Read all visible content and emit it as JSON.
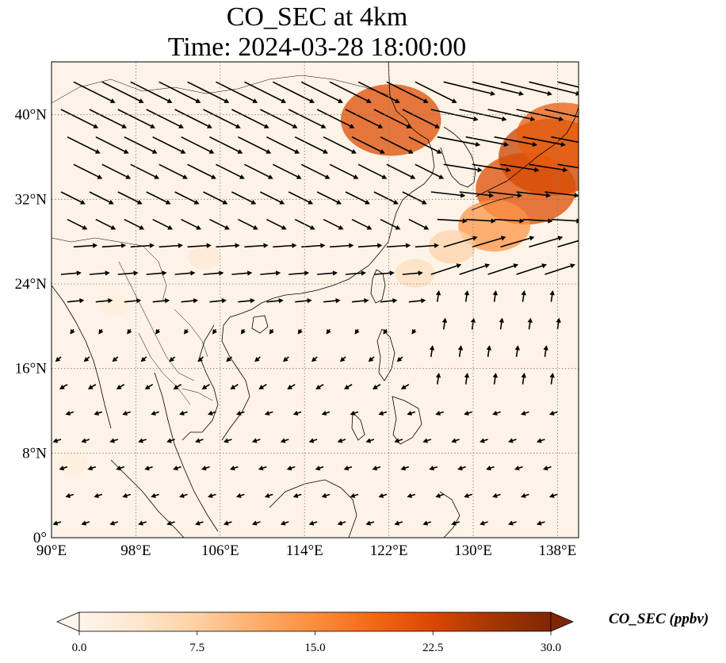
{
  "title": {
    "line1": "CO_SEC at 4km",
    "line2": "Time: 2024-03-28 18:00:00"
  },
  "map": {
    "extent": {
      "lon": [
        90,
        140
      ],
      "lat": [
        0,
        45
      ]
    },
    "gridlines": "dotted",
    "lon_ticks": [
      {
        "value": 90,
        "label": "90°E"
      },
      {
        "value": 98,
        "label": "98°E"
      },
      {
        "value": 106,
        "label": "106°E"
      },
      {
        "value": 114,
        "label": "114°E"
      },
      {
        "value": 122,
        "label": "122°E"
      },
      {
        "value": 130,
        "label": "130°E"
      },
      {
        "value": 138,
        "label": "138°E"
      }
    ],
    "lat_ticks": [
      {
        "value": 0,
        "label": "0°"
      },
      {
        "value": 8,
        "label": "8°N"
      },
      {
        "value": 16,
        "label": "16°N"
      },
      {
        "value": 24,
        "label": "24°N"
      },
      {
        "value": 32,
        "label": "32°N"
      },
      {
        "value": 40,
        "label": "40°N"
      }
    ],
    "plumes": [
      {
        "lon": 137.5,
        "lat": 36.0,
        "value": 24
      },
      {
        "lon": 135.0,
        "lat": 33.0,
        "value": 22
      },
      {
        "lon": 138.5,
        "lat": 38.0,
        "value": 20
      },
      {
        "lon": 132.0,
        "lat": 29.5,
        "value": 14
      },
      {
        "lon": 128.0,
        "lat": 27.5,
        "value": 7
      },
      {
        "lon": 122.2,
        "lat": 39.5,
        "value": 22
      },
      {
        "lon": 124.5,
        "lat": 25.0,
        "value": 5
      },
      {
        "lon": 104.5,
        "lat": 26.5,
        "value": 3
      },
      {
        "lon": 96.0,
        "lat": 22.0,
        "value": 2
      },
      {
        "lon": 92.0,
        "lat": 7.0,
        "value": 2
      }
    ]
  },
  "colorbar": {
    "label": "CO_SEC (ppbv)",
    "min": 0,
    "max": 30,
    "extend": "both",
    "colormap": [
      "#fff5eb",
      "#fee6ce",
      "#fdd0a2",
      "#fdae6b",
      "#fd8d3c",
      "#f16913",
      "#d94801",
      "#a63603",
      "#7f2704"
    ],
    "ticks": [
      {
        "value": 0.0,
        "label": "0.0"
      },
      {
        "value": 7.5,
        "label": "7.5"
      },
      {
        "value": 15.0,
        "label": "15.0"
      },
      {
        "value": 22.5,
        "label": "22.5"
      },
      {
        "value": 30.0,
        "label": "30.0"
      }
    ]
  }
}
